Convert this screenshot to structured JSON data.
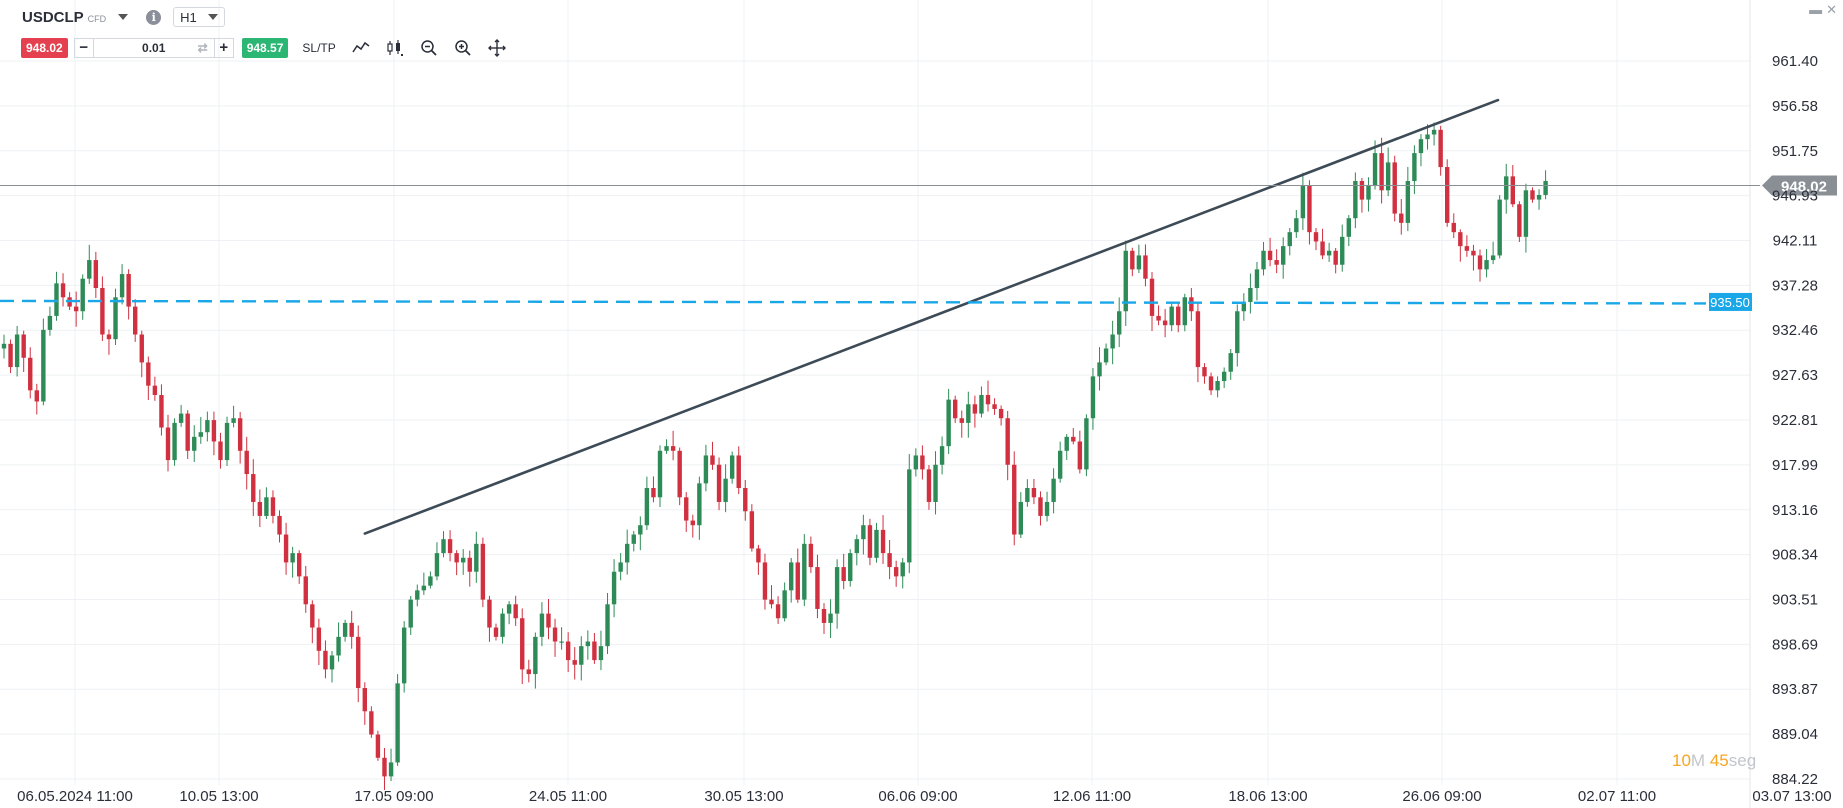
{
  "toolbar": {
    "symbol": "USDCLP",
    "instrument_type": "CFD",
    "timeframe": "H1",
    "sell_price": "948.02",
    "buy_price": "948.57",
    "quantity": "0.01",
    "minus_label": "−",
    "plus_label": "+",
    "sltp_label": "SL/TP",
    "info_icon": "info-icon",
    "tools": [
      "line-chart-icon",
      "candlestick-icon",
      "zoom-out-icon",
      "zoom-in-icon",
      "move-icon"
    ]
  },
  "window_controls": {
    "minimize": "▬",
    "close": "✕"
  },
  "timer": {
    "minutes": "10",
    "minutes_unit": "M",
    "seconds": "45",
    "seconds_unit": "seg"
  },
  "chart_data": {
    "type": "candlestick",
    "symbol": "USDCLP",
    "timeframe": "H1",
    "ylim": [
      884.22,
      963.0
    ],
    "y_ticks": [
      "961.40",
      "956.58",
      "951.75",
      "946.93",
      "942.11",
      "937.28",
      "932.46",
      "927.63",
      "922.81",
      "917.99",
      "913.16",
      "908.34",
      "903.51",
      "898.69",
      "893.87",
      "889.04",
      "884.22"
    ],
    "x_ticks": [
      "06.05.2024 11:00",
      "10.05 13:00",
      "17.05 09:00",
      "24.05 11:00",
      "30.05 13:00",
      "06.06 09:00",
      "12.06 11:00",
      "18.06 13:00",
      "26.06 09:00",
      "02.07 11:00",
      "03.07 13:00"
    ],
    "current_price": 948.02,
    "current_price_label": "948.02",
    "horizontal_level": 935.5,
    "horizontal_level_label": "935.50",
    "trendline": {
      "from": {
        "bar": 55,
        "price": 910.6
      },
      "to": {
        "bar": 244,
        "price": 956.0
      }
    },
    "colors": {
      "up": "#2e8b57",
      "down": "#d0303f",
      "level": "#19a7e8",
      "trendline": "#3d4b57",
      "price_line": "#8a8f96",
      "price_tag": "#8a8f96",
      "level_tag": "#19a7e8"
    },
    "closes": [
      931.0,
      928.5,
      932.0,
      929.5,
      926.0,
      924.8,
      932.5,
      934.0,
      937.5,
      936.0,
      935.0,
      934.5,
      938.0,
      940.0,
      937.0,
      932.0,
      931.5,
      936.0,
      938.5,
      935.0,
      932.0,
      929.0,
      926.5,
      925.5,
      922.0,
      918.5,
      922.5,
      923.5,
      919.5,
      921.0,
      921.5,
      922.8,
      920.5,
      918.5,
      922.5,
      923.0,
      919.5,
      917.0,
      914.0,
      912.5,
      914.5,
      912.5,
      910.5,
      907.5,
      908.5,
      906.0,
      903.0,
      900.5,
      898.0,
      896.0,
      897.5,
      899.5,
      901.0,
      899.5,
      894.0,
      891.5,
      889.0,
      886.5,
      884.5,
      886.0,
      894.5,
      900.5,
      903.5,
      904.5,
      905.0,
      906.0,
      908.5,
      910.0,
      908.5,
      907.5,
      908.0,
      906.5,
      909.5,
      903.5,
      900.5,
      899.5,
      902.0,
      903.0,
      901.5,
      896.0,
      895.5,
      899.5,
      902.0,
      900.5,
      899.0,
      899.0,
      897.0,
      896.5,
      898.5,
      899.0,
      897.0,
      898.5,
      903.0,
      906.5,
      907.5,
      909.5,
      910.5,
      911.5,
      915.5,
      914.5,
      919.5,
      920.0,
      919.5,
      914.5,
      912.0,
      911.5,
      916.0,
      919.0,
      918.0,
      914.0,
      916.5,
      919.0,
      915.5,
      913.0,
      909.0,
      907.5,
      903.5,
      903.0,
      901.5,
      904.5,
      907.5,
      903.5,
      909.5,
      907.0,
      902.5,
      901.0,
      902.0,
      907.0,
      905.5,
      908.5,
      910.0,
      911.5,
      908.0,
      911.0,
      908.5,
      907.0,
      906.0,
      907.5,
      917.5,
      919.0,
      917.5,
      914.0,
      918.0,
      920.0,
      925.0,
      923.0,
      922.5,
      924.5,
      923.5,
      925.5,
      924.5,
      924.0,
      923.0,
      918.0,
      910.5,
      914.0,
      915.5,
      914.5,
      912.5,
      914.0,
      916.5,
      919.5,
      921.0,
      920.5,
      917.5,
      923.0,
      927.5,
      929.0,
      930.5,
      932.0,
      934.5,
      941.0,
      939.0,
      940.5,
      938.0,
      934.0,
      933.5,
      933.0,
      935.0,
      933.0,
      936.0,
      934.5,
      928.5,
      927.5,
      926.0,
      927.0,
      928.0,
      930.0,
      934.5,
      935.5,
      937.0,
      939.0,
      941.0,
      940.0,
      939.5,
      941.5,
      943.0,
      944.5,
      948.0,
      943.0,
      942.0,
      940.5,
      941.0,
      939.5,
      942.5,
      944.5,
      948.5,
      946.5,
      948.0,
      951.5,
      947.5,
      950.5,
      945.0,
      944.0,
      948.5,
      951.5,
      953.0,
      953.5,
      954.0,
      950.0,
      944.0,
      943.0,
      941.5,
      941.0,
      940.5,
      939.0,
      940.0,
      940.5,
      946.5,
      949.0,
      946.0,
      942.5,
      947.5,
      946.5,
      947.0,
      948.5
    ],
    "ohlc_note": ""
  }
}
